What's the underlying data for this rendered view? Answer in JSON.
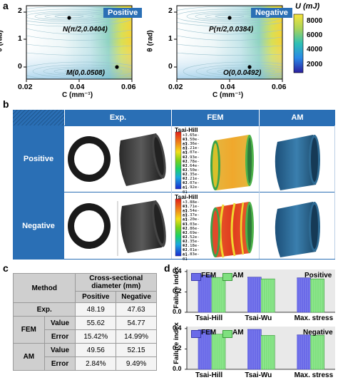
{
  "panel_a": {
    "label": "a",
    "plots": [
      {
        "tag": "Positive",
        "point_top": "N(π/2,0.0404)",
        "point_bottom": "M(0,0.0508)",
        "x_ticks": [
          "0.02",
          "0.04",
          "0.06"
        ],
        "y_ticks": [
          "2",
          "1",
          "0"
        ]
      },
      {
        "tag": "Negative",
        "point_top": "P(π/2,0.0384)",
        "point_bottom": "O(0,0.0492)",
        "x_ticks": [
          "0.02",
          "0.04",
          "0.06"
        ],
        "y_ticks": [
          "2",
          "1",
          "0"
        ]
      }
    ],
    "xlabel": "C (mm⁻¹)",
    "ylabel": "θ (rad)",
    "colorbar": {
      "title": "U (mJ)",
      "ticks": [
        "8000",
        "6000",
        "4000",
        "2000"
      ]
    }
  },
  "panel_b": {
    "label": "b",
    "headers": [
      "Exp.",
      "FEM",
      "AM"
    ],
    "rows": [
      {
        "label": "Positive",
        "legend_title": "Tsai-Hill",
        "legend_values": [
          "+3.65e-01",
          "+3.50e-01",
          "+3.36e-01",
          "+3.21e-01",
          "+3.07e-01",
          "+2.93e-01",
          "+2.78e-01",
          "+2.64e-01",
          "+2.50e-01",
          "+2.35e-01",
          "+2.21e-01",
          "+2.07e-01",
          "+1.92e-01"
        ]
      },
      {
        "label": "Negative",
        "legend_title": "Tsai-Hill",
        "legend_values": [
          "+3.88e-01",
          "+3.71e-01",
          "+3.54e-01",
          "+3.37e-01",
          "+3.20e-01",
          "+3.03e-01",
          "+2.86e-01",
          "+2.69e-01",
          "+2.52e-01",
          "+2.35e-01",
          "+2.18e-01",
          "+2.01e-01",
          "+1.83e-01"
        ]
      }
    ]
  },
  "panel_c": {
    "label": "c",
    "method_header": "Method",
    "diameter_header": "Cross-sectional diameter (mm)",
    "positive_header": "Positive",
    "negative_header": "Negative",
    "exp_label": "Exp.",
    "exp_positive": "48.19",
    "exp_negative": "47.63",
    "fem_label": "FEM",
    "am_label": "AM",
    "value_label": "Value",
    "error_label": "Error",
    "fem_value_positive": "55.62",
    "fem_value_negative": "54.77",
    "fem_error_positive": "15.42%",
    "fem_error_negative": "14.99%",
    "am_value_positive": "49.56",
    "am_value_negative": "52.15",
    "am_error_positive": "2.84%",
    "am_error_negative": "9.49%"
  },
  "panel_d": {
    "label": "d",
    "ylabel": "Failure index",
    "legend_fem": "FEM",
    "legend_am": "AM",
    "colors": {
      "FEM": "#6a6ae8",
      "AM": "#7fe07f"
    }
  },
  "chart_data": [
    {
      "type": "bar",
      "title": "Positive",
      "categories": [
        "Tsai-Hill",
        "Tsai-Wu",
        "Max. stress"
      ],
      "series": [
        {
          "name": "FEM",
          "values": [
            0.365,
            0.345,
            0.338
          ]
        },
        {
          "name": "AM",
          "values": [
            0.342,
            0.328,
            0.328
          ]
        }
      ],
      "ylabel": "Failure index",
      "ylim": [
        0.0,
        0.42
      ],
      "yticks": [
        "0.0",
        "0.2",
        "0.4"
      ]
    },
    {
      "type": "bar",
      "title": "Negative",
      "categories": [
        "Tsai-Hill",
        "Tsai-Wu",
        "Max. stress"
      ],
      "series": [
        {
          "name": "FEM",
          "values": [
            0.388,
            0.392,
            0.338
          ]
        },
        {
          "name": "AM",
          "values": [
            0.345,
            0.333,
            0.335
          ]
        }
      ],
      "ylabel": "Failure index",
      "ylim": [
        0.0,
        0.42
      ],
      "yticks": [
        "0.0",
        "0.2",
        "0.4"
      ]
    }
  ]
}
